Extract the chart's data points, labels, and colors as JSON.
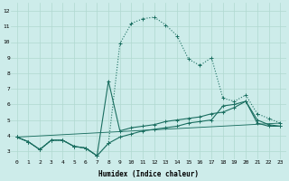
{
  "xlabel": "Humidex (Indice chaleur)",
  "background_color": "#cdecea",
  "grid_color": "#b0d8d0",
  "line_color": "#1a6e60",
  "xlim": [
    -0.5,
    23.5
  ],
  "ylim": [
    2.5,
    12.5
  ],
  "yticks": [
    3,
    4,
    5,
    6,
    7,
    8,
    9,
    10,
    11,
    12
  ],
  "xticks": [
    0,
    1,
    2,
    3,
    4,
    5,
    6,
    7,
    8,
    9,
    10,
    11,
    12,
    13,
    14,
    15,
    16,
    17,
    18,
    19,
    20,
    21,
    22,
    23
  ],
  "series1_x": [
    0,
    1,
    2,
    3,
    4,
    5,
    6,
    7,
    8,
    9,
    10,
    11,
    12,
    13,
    14,
    15,
    16,
    17,
    18,
    19,
    20,
    21,
    22,
    23
  ],
  "series1_y": [
    3.9,
    3.6,
    3.1,
    3.7,
    3.7,
    3.3,
    3.2,
    2.7,
    3.5,
    9.9,
    11.2,
    11.5,
    11.6,
    11.1,
    10.4,
    8.9,
    8.5,
    9.0,
    6.4,
    6.2,
    6.6,
    5.4,
    5.1,
    4.8
  ],
  "series2_x": [
    0,
    1,
    2,
    3,
    4,
    5,
    6,
    7,
    8,
    9,
    10,
    11,
    12,
    13,
    14,
    15,
    16,
    17,
    18,
    19,
    20,
    21,
    22,
    23
  ],
  "series2_y": [
    3.9,
    3.6,
    3.1,
    3.7,
    3.7,
    3.3,
    3.2,
    2.7,
    7.5,
    4.3,
    4.5,
    4.6,
    4.7,
    4.9,
    5.0,
    5.1,
    5.2,
    5.4,
    5.5,
    5.8,
    6.2,
    5.0,
    4.7,
    4.6
  ],
  "series3_x": [
    0,
    1,
    2,
    3,
    4,
    5,
    6,
    7,
    8,
    9,
    10,
    11,
    12,
    13,
    14,
    15,
    16,
    17,
    18,
    19,
    20,
    21,
    22,
    23
  ],
  "series3_y": [
    3.9,
    3.6,
    3.1,
    3.7,
    3.7,
    3.3,
    3.2,
    2.7,
    3.5,
    3.9,
    4.1,
    4.3,
    4.4,
    4.5,
    4.6,
    4.8,
    4.9,
    5.0,
    5.9,
    6.0,
    6.2,
    4.8,
    4.6,
    4.6
  ],
  "series4_x": [
    0,
    23
  ],
  "series4_y": [
    3.9,
    4.8
  ]
}
